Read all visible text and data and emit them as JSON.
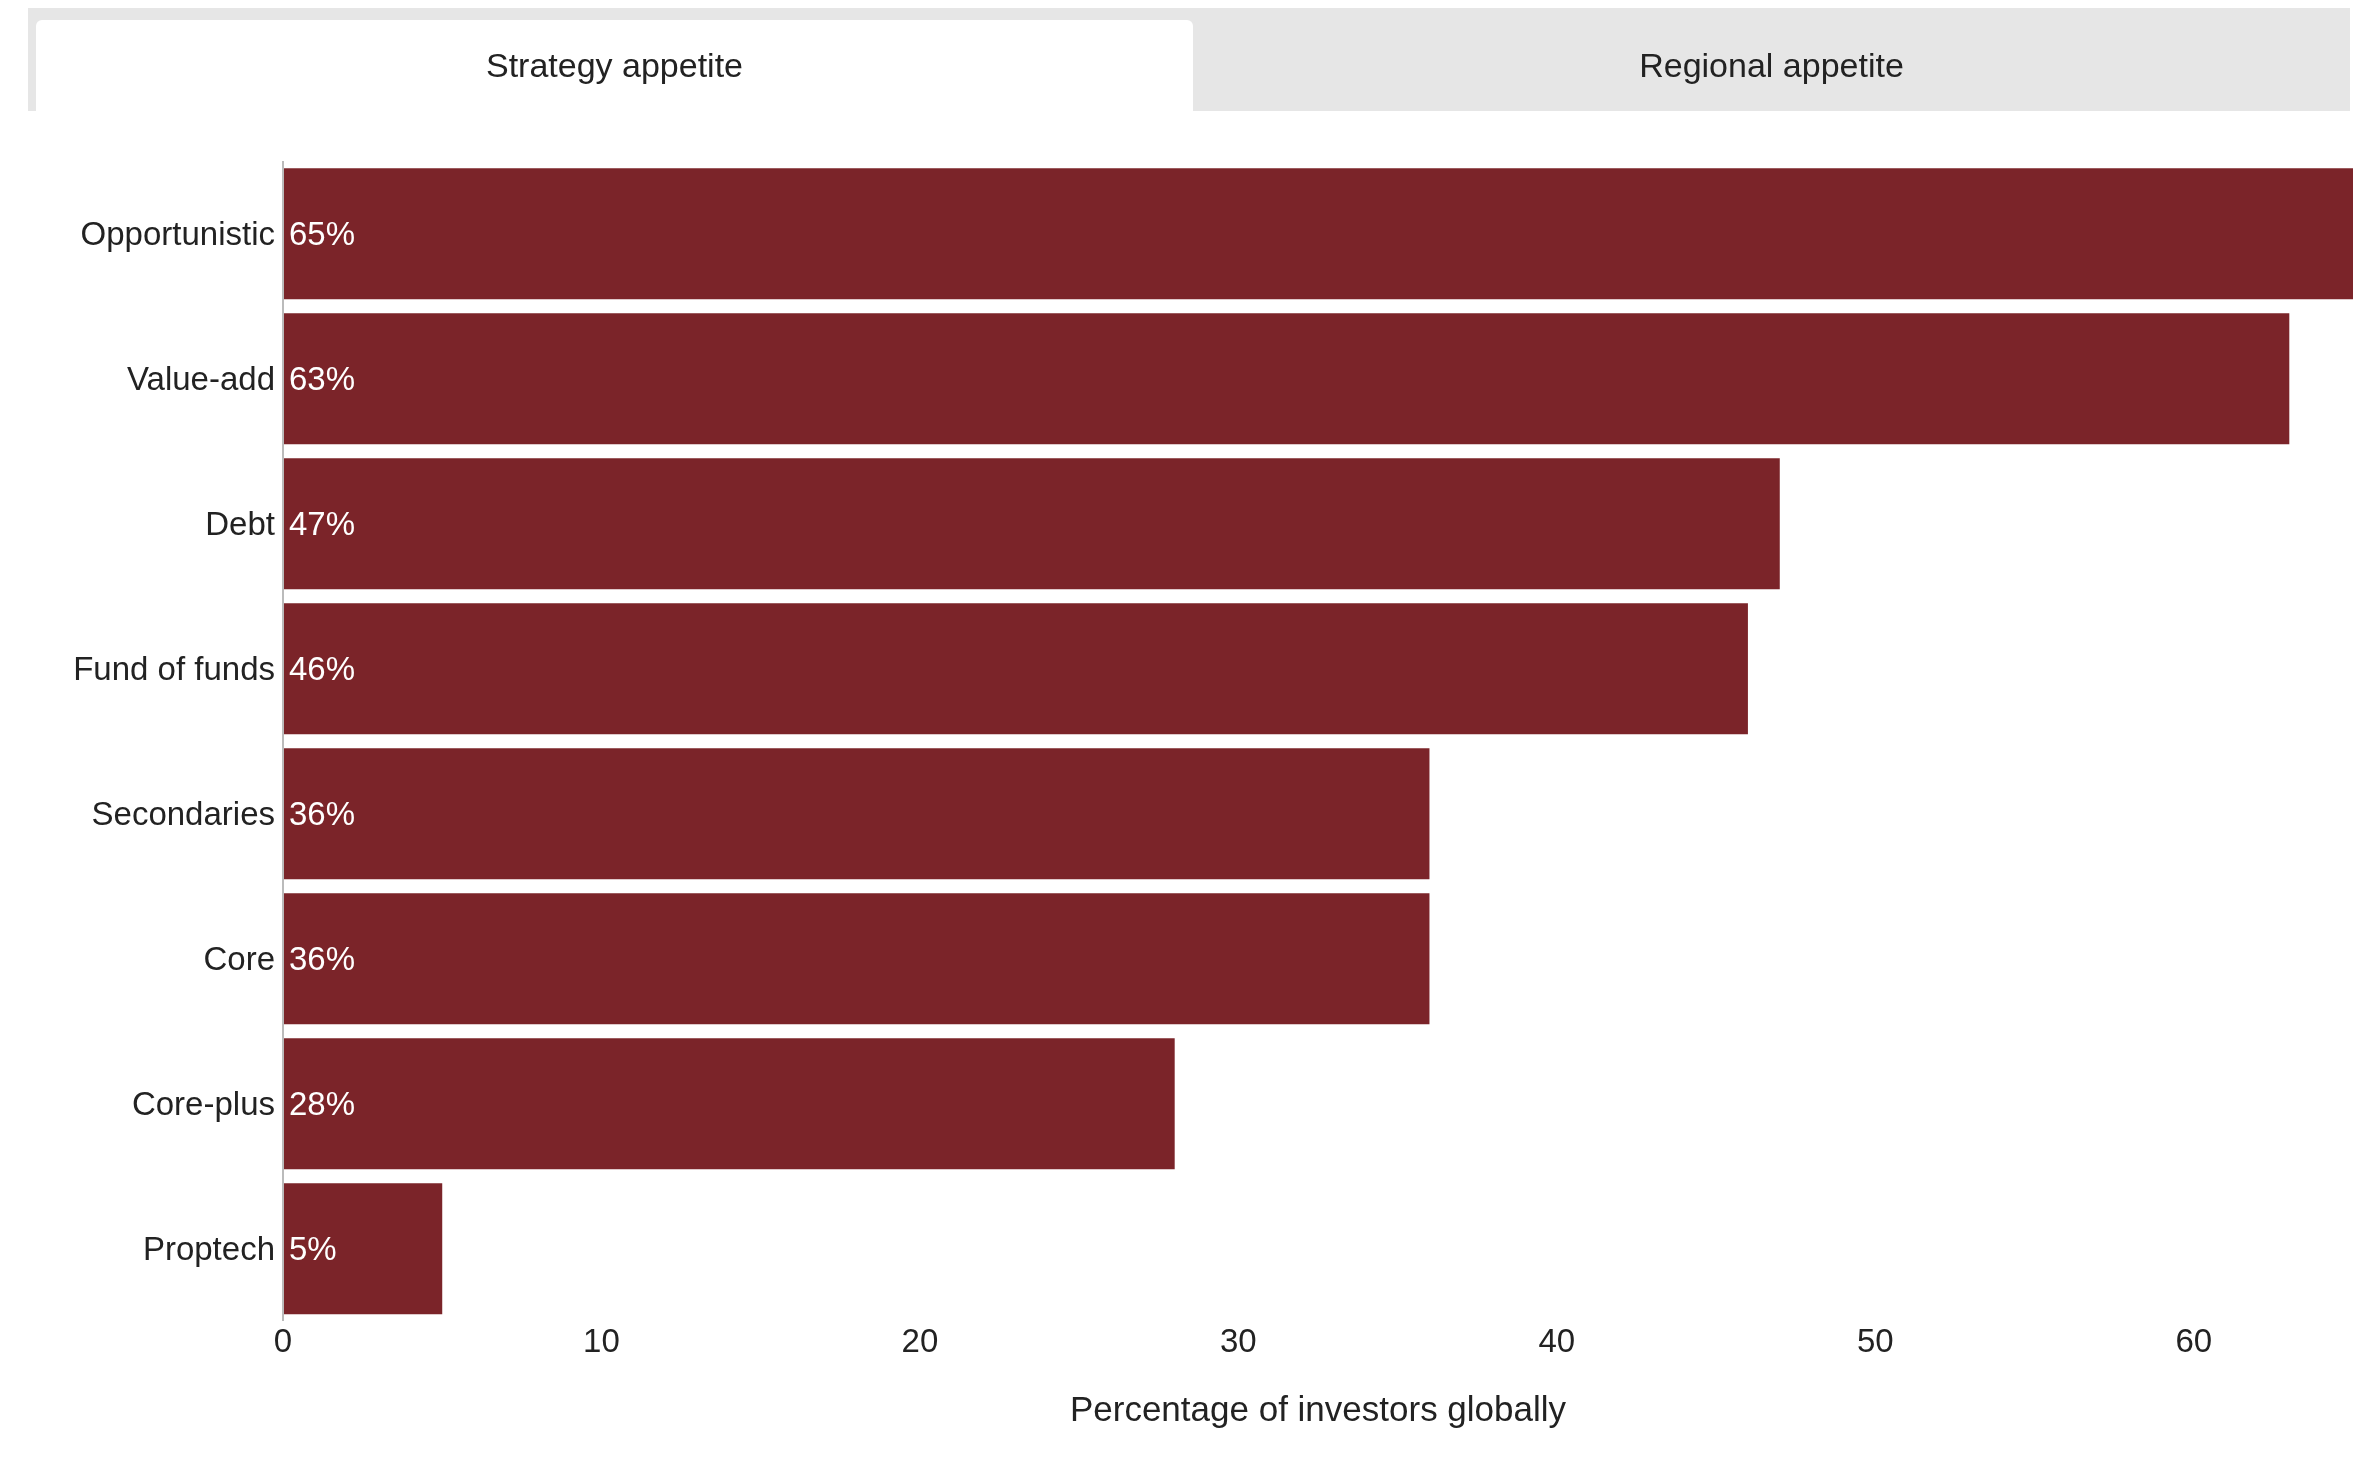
{
  "chart_data": {
    "type": "bar",
    "orientation": "horizontal",
    "xlabel": "Percentage of investors globally",
    "annotations": [
      "Strategy appetite",
      "Regional appetite"
    ],
    "categories": [
      "Opportunistic",
      "Value-add",
      "Debt",
      "Fund of funds",
      "Secondaries",
      "Core",
      "Core-plus",
      "Proptech"
    ],
    "values": [
      65,
      63,
      47,
      46,
      36,
      36,
      28,
      5
    ],
    "value_labels": [
      "65%",
      "63%",
      "47%",
      "46%",
      "36%",
      "36%",
      "28%",
      "5%"
    ],
    "color": "#7b2429",
    "xlim": [
      0,
      65
    ],
    "xticks": [
      0,
      10,
      20,
      30,
      40,
      50,
      60
    ],
    "grid": false,
    "legend": false
  }
}
